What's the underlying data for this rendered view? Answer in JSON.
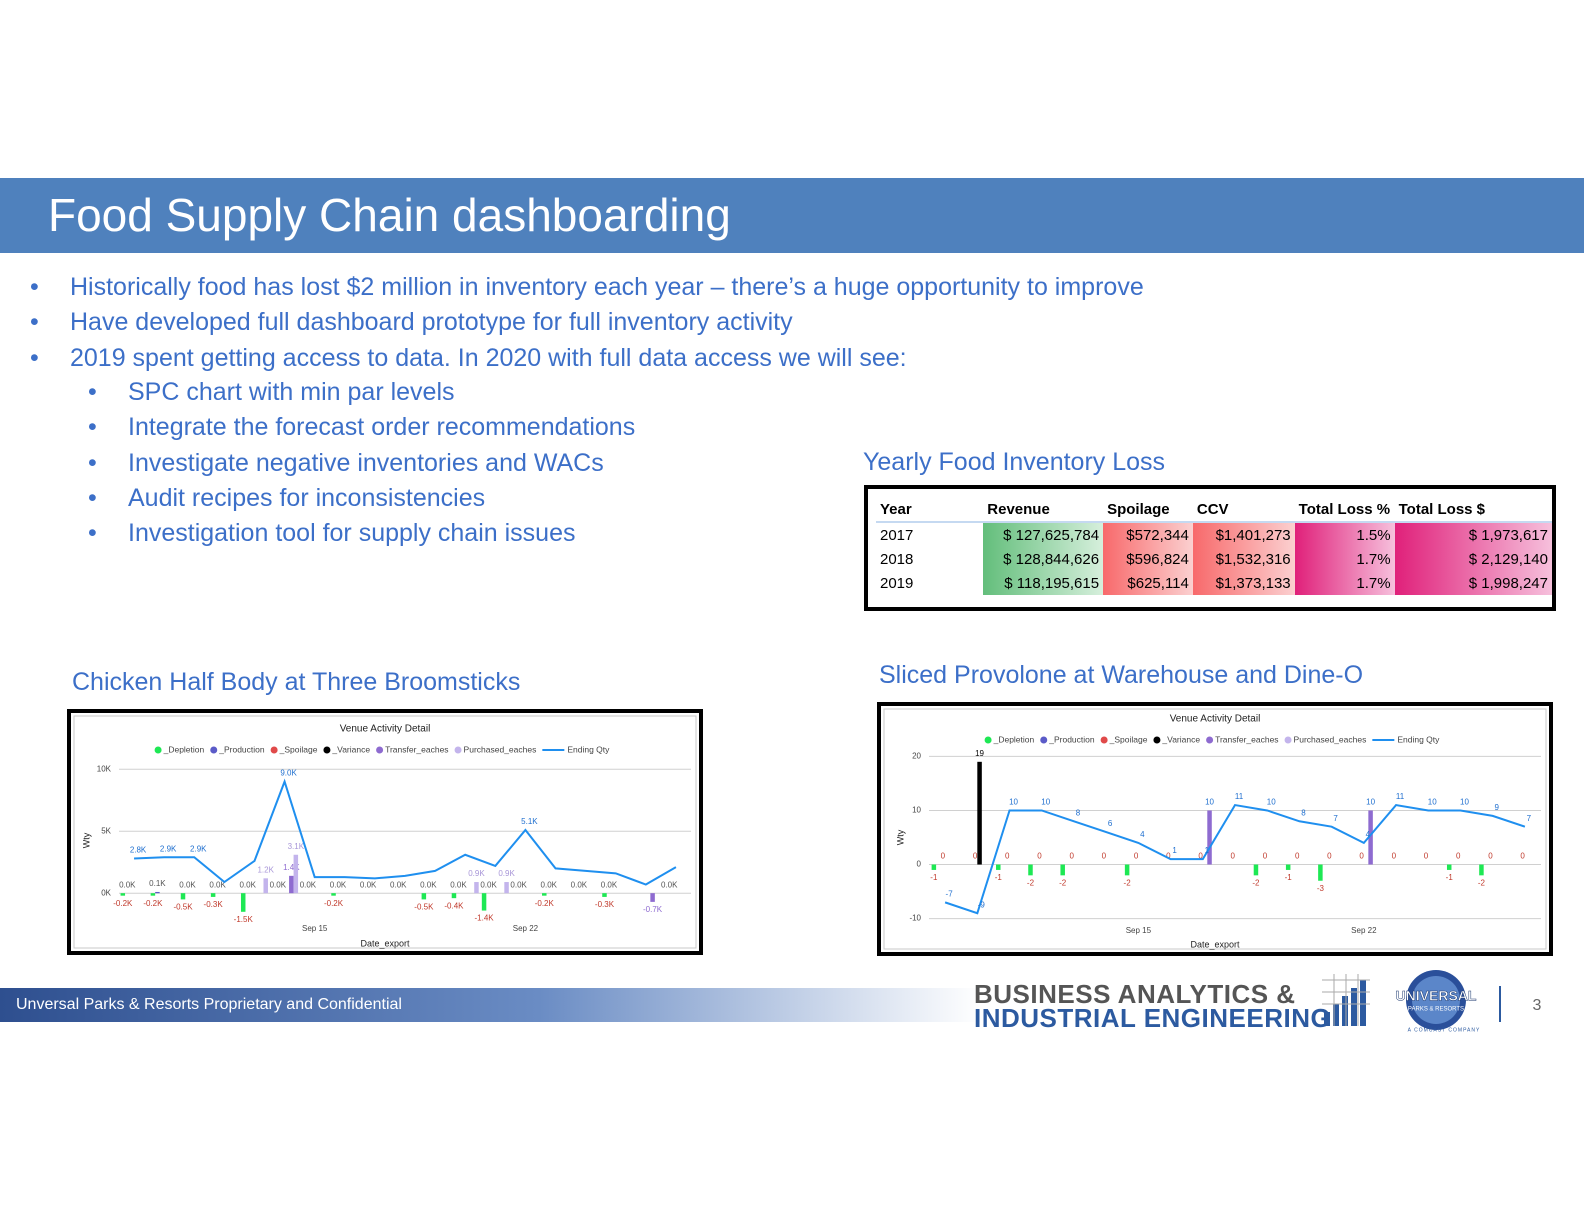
{
  "header": {
    "title": "Food Supply Chain dashboarding"
  },
  "bullets": [
    "Historically food has lost $2 million in inventory each year – there’s a huge opportunity to improve",
    "Have developed full dashboard prototype for full inventory activity",
    "2019 spent getting access to data. In 2020 with full data access we will see:"
  ],
  "sub_bullets": [
    "SPC chart with min par levels",
    "Integrate the forecast order recommendations",
    "Investigate negative inventories and WACs",
    "Audit recipes for inconsistencies",
    "Investigation tool for supply chain issues"
  ],
  "table": {
    "title": "Yearly Food Inventory Loss",
    "columns": [
      "Year",
      "Revenue",
      "Spoilage",
      "CCV",
      "Total Loss %",
      "Total Loss $"
    ],
    "rows": [
      [
        "2017",
        "$ 127,625,784",
        "$572,344",
        "$1,401,273",
        "1.5%",
        "$ 1,973,617"
      ],
      [
        "2018",
        "$ 128,844,626",
        "$596,824",
        "$1,532,316",
        "1.7%",
        "$ 2,129,140"
      ],
      [
        "2019",
        "$ 118,195,615",
        "$625,114",
        "$1,373,133",
        "1.7%",
        "$ 1,998,247"
      ]
    ]
  },
  "chart_data": [
    {
      "type": "combo",
      "heading": "Chicken Half Body at Three Broomsticks",
      "title": "Venue Activity Detail",
      "x_label": "Date_export",
      "y_label": "Wty",
      "categories": [
        null,
        null,
        null,
        null,
        null,
        null,
        "Sep 15",
        null,
        null,
        null,
        null,
        null,
        null,
        "Sep 22",
        null,
        null,
        null,
        null,
        null
      ],
      "ylim": [
        -2000,
        10500
      ],
      "yticks": [
        {
          "value": 0,
          "label": "0K"
        },
        {
          "value": 5000,
          "label": "5K"
        },
        {
          "value": 10000,
          "label": "10K"
        }
      ],
      "grid": true,
      "series": [
        {
          "name": "_Depletion",
          "type": "bar",
          "color": "#1ee854",
          "label_color": "#c0392b",
          "values": [
            -200,
            -200,
            -500,
            -300,
            -1500,
            0,
            0,
            -200,
            0,
            0,
            -500,
            -400,
            -1400,
            0,
            -200,
            0,
            -300,
            0,
            0
          ],
          "value_labels": [
            "-0.2K",
            "-0.2K",
            "-0.5K",
            "-0.3K",
            "-1.5K",
            null,
            null,
            "-0.2K",
            null,
            null,
            "-0.5K",
            "-0.4K",
            "-1.4K",
            null,
            "-0.2K",
            null,
            "-0.3K",
            null,
            null
          ]
        },
        {
          "name": "_Production",
          "type": "bar",
          "color": "#5b5bc8",
          "label_color": "#555555",
          "values": [
            0,
            100,
            0,
            0,
            0,
            0,
            0,
            0,
            0,
            0,
            0,
            0,
            0,
            0,
            0,
            0,
            0,
            0,
            0
          ],
          "value_labels": [
            "0.0K",
            "0.1K",
            "0.0K",
            "0.0K",
            "0.0K",
            "0.0K",
            "0.0K",
            "0.0K",
            "0.0K",
            "0.0K",
            "0.0K",
            "0.0K",
            "0.0K",
            "0.0K",
            "0.0K",
            "0.0K",
            "0.0K",
            null,
            "0.0K"
          ]
        },
        {
          "name": "_Spoilage",
          "type": "bar",
          "color": "#e04a4a",
          "values": [
            0,
            0,
            0,
            0,
            0,
            0,
            0,
            0,
            0,
            0,
            0,
            0,
            0,
            0,
            0,
            0,
            0,
            0,
            0
          ]
        },
        {
          "name": "_Variance",
          "type": "bar",
          "color": "#000000",
          "values": [
            0,
            0,
            0,
            0,
            0,
            0,
            0,
            0,
            0,
            0,
            0,
            0,
            0,
            0,
            0,
            0,
            0,
            0,
            0
          ]
        },
        {
          "name": "Transfer_eaches",
          "type": "bar",
          "color": "#8e6bd0",
          "label_color": "#8e6bd0",
          "values": [
            0,
            0,
            0,
            0,
            0,
            1400,
            0,
            0,
            0,
            0,
            0,
            0,
            0,
            0,
            0,
            0,
            0,
            -700,
            0
          ],
          "value_labels": [
            null,
            null,
            null,
            null,
            null,
            "1.4K",
            null,
            null,
            null,
            null,
            null,
            null,
            null,
            null,
            null,
            null,
            null,
            "-0.7K",
            null
          ]
        },
        {
          "name": "Purchased_eaches",
          "type": "bar",
          "color": "#c3b4ec",
          "label_color": "#a896d8",
          "values": [
            0,
            0,
            0,
            0,
            1200,
            3100,
            0,
            0,
            0,
            0,
            0,
            900,
            900,
            0,
            0,
            0,
            0,
            0,
            0
          ],
          "value_labels": [
            null,
            null,
            null,
            null,
            "1.2K",
            "3.1K",
            null,
            null,
            null,
            null,
            null,
            "0.9K",
            "0.9K",
            null,
            null,
            null,
            null,
            null,
            null
          ]
        },
        {
          "name": "Ending Qty",
          "type": "line",
          "color": "#1f8fef",
          "label_color": "#1f6fcf",
          "values": [
            2800,
            2900,
            2900,
            900,
            2600,
            9000,
            1300,
            1300,
            1200,
            1400,
            1800,
            3100,
            2200,
            5100,
            2000,
            1800,
            1600,
            700,
            2100
          ],
          "value_labels": [
            "2.8K",
            "2.9K",
            "2.9K",
            null,
            null,
            "9.0K",
            null,
            null,
            null,
            null,
            null,
            null,
            null,
            "5.1K",
            null,
            null,
            null,
            null,
            null
          ]
        }
      ]
    },
    {
      "type": "combo",
      "heading": "Sliced Provolone at Warehouse and Dine-O",
      "title": "Venue Activity Detail",
      "x_label": "Date_export",
      "y_label": "Wty",
      "categories": [
        null,
        null,
        null,
        null,
        null,
        null,
        "Sep 15",
        null,
        null,
        null,
        null,
        null,
        null,
        "Sep 22",
        null,
        null,
        null,
        null,
        null
      ],
      "ylim": [
        -11,
        21
      ],
      "yticks": [
        -10,
        0,
        10,
        20
      ],
      "grid": true,
      "series": [
        {
          "name": "_Depletion",
          "type": "bar",
          "color": "#1ee854",
          "label_color": "#c0392b",
          "show_labels": "nonzero",
          "values": [
            -1,
            0,
            -1,
            -2,
            -2,
            0,
            -2,
            0,
            0,
            0,
            -2,
            -1,
            -3,
            0,
            0,
            0,
            -1,
            -2,
            0
          ]
        },
        {
          "name": "_Production",
          "type": "bar",
          "color": "#5b5bc8",
          "values": [
            0,
            0,
            0,
            0,
            0,
            0,
            0,
            0,
            0,
            0,
            0,
            0,
            0,
            0,
            0,
            0,
            0,
            0,
            0
          ]
        },
        {
          "name": "_Spoilage",
          "type": "bar",
          "color": "#e04a4a",
          "label_color": "#c0392b",
          "show_labels": "all",
          "values": [
            0,
            0,
            0,
            0,
            0,
            0,
            0,
            0,
            0,
            0,
            0,
            0,
            0,
            0,
            0,
            0,
            0,
            0,
            0
          ]
        },
        {
          "name": "_Variance",
          "type": "bar",
          "color": "#000000",
          "label_color": "#000000",
          "show_labels": "nonzero",
          "values": [
            0,
            19,
            0,
            0,
            0,
            0,
            0,
            0,
            0,
            0,
            0,
            0,
            0,
            0,
            0,
            0,
            0,
            0,
            0
          ]
        },
        {
          "name": "Transfer_eaches",
          "type": "bar",
          "color": "#8e6bd0",
          "label_color": "#1f6fcf",
          "show_labels": "nonzero",
          "values": [
            0,
            0,
            0,
            0,
            0,
            0,
            0,
            0,
            10,
            0,
            0,
            0,
            0,
            10,
            0,
            0,
            0,
            0,
            0
          ]
        },
        {
          "name": "Purchased_eaches",
          "type": "bar",
          "color": "#c3b4ec",
          "values": [
            0,
            0,
            0,
            0,
            0,
            0,
            0,
            0,
            0,
            0,
            0,
            0,
            0,
            0,
            0,
            0,
            0,
            0,
            0
          ]
        },
        {
          "name": "Ending Qty",
          "type": "line",
          "color": "#1f8fef",
          "label_color": "#1f6fcf",
          "show_labels": "all",
          "values": [
            -7,
            -9,
            10,
            10,
            8,
            6,
            4,
            1,
            1,
            11,
            10,
            8,
            7,
            4,
            11,
            10,
            10,
            9,
            7
          ]
        }
      ]
    }
  ],
  "footer": {
    "confidential": "Unversal Parks & Resorts Proprietary and Confidential",
    "logo_line1": "BUSINESS ANALYTICS &",
    "logo_line2": "INDUSTRIAL ENGINEERING",
    "brand": "UNIVERSAL",
    "brand_sub": "PARKS & RESORTS",
    "brand_tag": "A COMCAST COMPANY",
    "page_number": "3"
  }
}
